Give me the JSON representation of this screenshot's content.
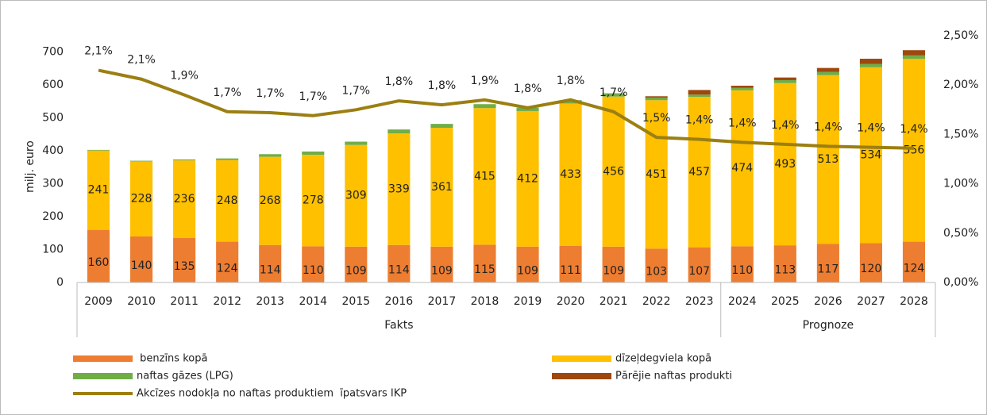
{
  "chart_data": {
    "type": "bar",
    "y_label": "milj. euro",
    "categories": [
      "2009",
      "2010",
      "2011",
      "2012",
      "2013",
      "2014",
      "2015",
      "2016",
      "2017",
      "2018",
      "2019",
      "2020",
      "2021",
      "2022",
      "2023",
      "2024",
      "2025",
      "2026",
      "2027",
      "2028"
    ],
    "groups": [
      {
        "name": "Fakts",
        "count": 15
      },
      {
        "name": "Prognoze",
        "count": 5
      }
    ],
    "ylim": [
      0,
      750
    ],
    "yticks": [
      0,
      100,
      200,
      300,
      400,
      500,
      600,
      700
    ],
    "y2lim": [
      0,
      2.5
    ],
    "y2ticks": [
      {
        "value": 0,
        "label": "0,00%"
      },
      {
        "value": 0.5,
        "label": "0,50%"
      },
      {
        "value": 1,
        "label": "1,00%"
      },
      {
        "value": 1.5,
        "label": "1,50%"
      },
      {
        "value": 2,
        "label": "2,00%"
      },
      {
        "value": 2.5,
        "label": "2,50%"
      }
    ],
    "series": [
      {
        "name": " benzīns kopā",
        "color": "#ED7D31",
        "labels": true,
        "values": [
          160,
          140,
          135,
          124,
          114,
          110,
          109,
          114,
          109,
          115,
          109,
          111,
          109,
          103,
          107,
          110,
          113,
          117,
          120,
          124
        ]
      },
      {
        "name": "dīzeļdegviela kopā",
        "color": "#FFC000",
        "labels": true,
        "values": [
          241,
          228,
          236,
          248,
          268,
          278,
          309,
          339,
          361,
          415,
          412,
          433,
          456,
          451,
          457,
          474,
          493,
          513,
          534,
          556
        ]
      },
      {
        "name": "naftas gāzes (LPG)",
        "color": "#70AD47",
        "values": [
          2,
          2,
          3,
          5,
          8,
          10,
          10,
          12,
          12,
          12,
          10,
          10,
          10,
          8,
          7,
          8,
          9,
          10,
          10,
          10
        ]
      },
      {
        "name": "Pārējie naftas produkti",
        "color": "#9E480E",
        "values": [
          0,
          0,
          0,
          0,
          0,
          0,
          0,
          0,
          0,
          0,
          0,
          0,
          0,
          4,
          14,
          6,
          8,
          12,
          16,
          16
        ]
      },
      {
        "name": "Akcīzes nodokļa no naftas produktiem  īpatsvars IKP",
        "color": "#9C7F12",
        "axis": "y2",
        "values": [
          2.15,
          2.06,
          1.9,
          1.73,
          1.72,
          1.69,
          1.75,
          1.84,
          1.8,
          1.85,
          1.77,
          1.85,
          1.73,
          1.47,
          1.45,
          1.42,
          1.4,
          1.38,
          1.37,
          1.36
        ],
        "value_labels": [
          "2,1%",
          "2,1%",
          "1,9%",
          "1,7%",
          "1,7%",
          "1,7%",
          "1,7%",
          "1,8%",
          "1,8%",
          "1,9%",
          "1,8%",
          "1,8%",
          "1,7%",
          "1,5%",
          "1,4%",
          "1,4%",
          "1,4%",
          "1,4%",
          "1,4%",
          "1,4%"
        ]
      }
    ]
  }
}
